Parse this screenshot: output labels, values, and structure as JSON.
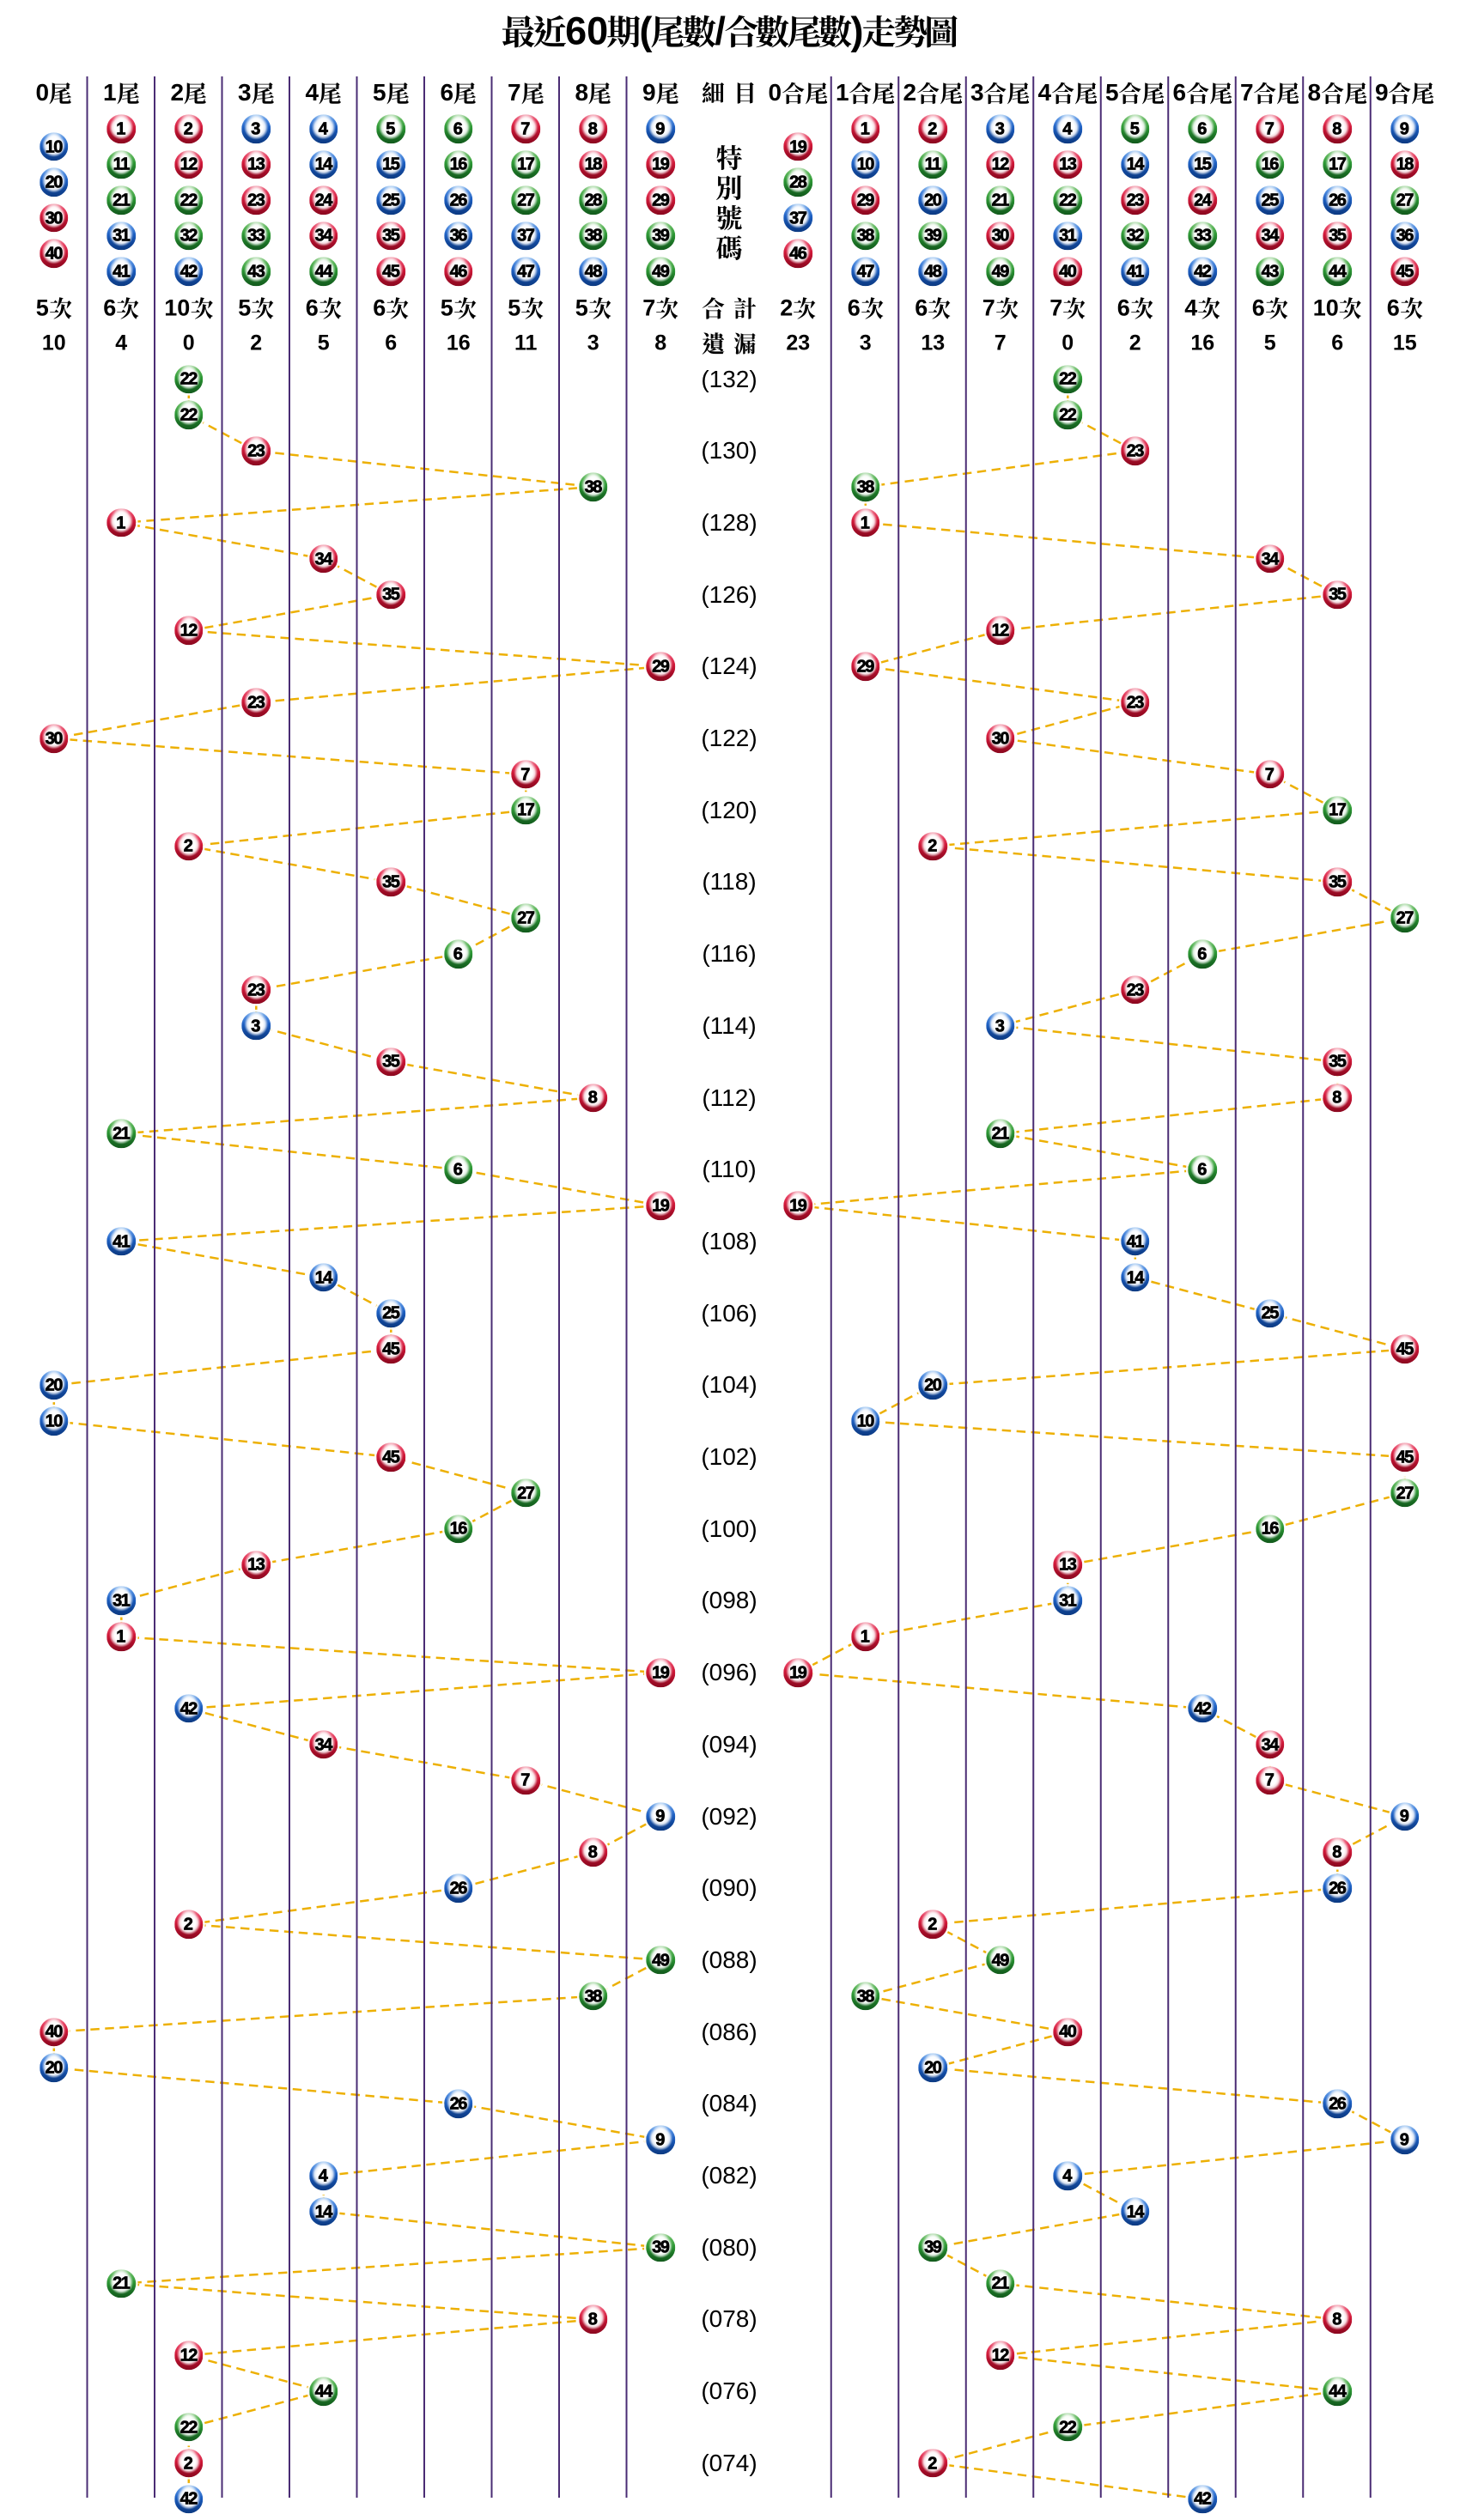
{
  "title": "最近60期(尾數/合數尾數)走勢圖",
  "center": {
    "header": "細目",
    "special_label": "特別號碼",
    "total_label": "合計",
    "miss_label": "遺漏"
  },
  "left_section": {
    "columns": [
      {
        "label": "0尾",
        "balls": [
          10,
          20,
          30,
          40
        ],
        "count": "5次",
        "miss": "10"
      },
      {
        "label": "1尾",
        "balls": [
          1,
          11,
          21,
          31,
          41
        ],
        "count": "6次",
        "miss": "4"
      },
      {
        "label": "2尾",
        "balls": [
          2,
          12,
          22,
          32,
          42
        ],
        "count": "10次",
        "miss": "0"
      },
      {
        "label": "3尾",
        "balls": [
          3,
          13,
          23,
          33,
          43
        ],
        "count": "5次",
        "miss": "2"
      },
      {
        "label": "4尾",
        "balls": [
          4,
          14,
          24,
          34,
          44
        ],
        "count": "6次",
        "miss": "5"
      },
      {
        "label": "5尾",
        "balls": [
          5,
          15,
          25,
          35,
          45
        ],
        "count": "6次",
        "miss": "6"
      },
      {
        "label": "6尾",
        "balls": [
          6,
          16,
          26,
          36,
          46
        ],
        "count": "5次",
        "miss": "16"
      },
      {
        "label": "7尾",
        "balls": [
          7,
          17,
          27,
          37,
          47
        ],
        "count": "5次",
        "miss": "11"
      },
      {
        "label": "8尾",
        "balls": [
          8,
          18,
          28,
          38,
          48
        ],
        "count": "5次",
        "miss": "3"
      },
      {
        "label": "9尾",
        "balls": [
          9,
          19,
          29,
          39,
          49
        ],
        "count": "7次",
        "miss": "8"
      }
    ]
  },
  "right_section": {
    "columns": [
      {
        "label": "0合尾",
        "balls": [
          19,
          28,
          37,
          46
        ],
        "count": "2次",
        "miss": "23"
      },
      {
        "label": "1合尾",
        "balls": [
          1,
          10,
          29,
          38,
          47
        ],
        "count": "6次",
        "miss": "3"
      },
      {
        "label": "2合尾",
        "balls": [
          2,
          11,
          20,
          39,
          48
        ],
        "count": "6次",
        "miss": "13"
      },
      {
        "label": "3合尾",
        "balls": [
          3,
          12,
          21,
          30,
          49
        ],
        "count": "7次",
        "miss": "7"
      },
      {
        "label": "4合尾",
        "balls": [
          4,
          13,
          22,
          31,
          40
        ],
        "count": "7次",
        "miss": "0"
      },
      {
        "label": "5合尾",
        "balls": [
          5,
          14,
          23,
          32,
          41
        ],
        "count": "6次",
        "miss": "2"
      },
      {
        "label": "6合尾",
        "balls": [
          6,
          15,
          24,
          33,
          42
        ],
        "count": "4次",
        "miss": "16"
      },
      {
        "label": "7合尾",
        "balls": [
          7,
          16,
          25,
          34,
          43
        ],
        "count": "6次",
        "miss": "5"
      },
      {
        "label": "8合尾",
        "balls": [
          8,
          17,
          26,
          35,
          44
        ],
        "count": "10次",
        "miss": "6"
      },
      {
        "label": "9合尾",
        "balls": [
          9,
          18,
          27,
          36,
          45
        ],
        "count": "6次",
        "miss": "15"
      }
    ]
  },
  "colors": {
    "ball_red": "#c81432",
    "ball_blue": "#1a5ec8",
    "ball_green": "#2e9b35",
    "grid_line": "#4a2c74",
    "connector": "#edb004",
    "text": "#000000"
  },
  "ball_color_groups": {
    "red": [
      1,
      2,
      7,
      8,
      12,
      13,
      18,
      19,
      23,
      24,
      29,
      30,
      34,
      35,
      40,
      45,
      46
    ],
    "blue": [
      3,
      4,
      9,
      10,
      14,
      15,
      20,
      25,
      26,
      31,
      36,
      37,
      41,
      42,
      47,
      48
    ],
    "green": [
      5,
      6,
      11,
      16,
      17,
      21,
      22,
      27,
      28,
      32,
      33,
      38,
      39,
      43,
      44,
      49
    ]
  },
  "chart_data": {
    "type": "scatter",
    "title": "最近60期(尾數/合數尾數)走勢圖",
    "left_axis_categories": [
      "0尾",
      "1尾",
      "2尾",
      "3尾",
      "4尾",
      "5尾",
      "6尾",
      "7尾",
      "8尾",
      "9尾"
    ],
    "right_axis_categories": [
      "0合尾",
      "1合尾",
      "2合尾",
      "3合尾",
      "4合尾",
      "5合尾",
      "6合尾",
      "7合尾",
      "8合尾",
      "9合尾"
    ],
    "left_counts": [
      "5次",
      "6次",
      "10次",
      "5次",
      "6次",
      "6次",
      "5次",
      "5次",
      "5次",
      "7次"
    ],
    "left_misses": [
      "10",
      "4",
      "0",
      "2",
      "5",
      "6",
      "16",
      "11",
      "3",
      "8"
    ],
    "right_counts": [
      "2次",
      "6次",
      "6次",
      "7次",
      "7次",
      "6次",
      "4次",
      "6次",
      "10次",
      "6次"
    ],
    "right_misses": [
      "23",
      "3",
      "13",
      "7",
      "0",
      "2",
      "16",
      "5",
      "6",
      "15"
    ],
    "period_labels_shown": [
      "(132)",
      "(130)",
      "(128)",
      "(126)",
      "(124)",
      "(122)",
      "(120)",
      "(118)",
      "(116)",
      "(114)",
      "(112)",
      "(110)",
      "(108)",
      "(106)",
      "(104)",
      "(102)",
      "(100)",
      "(098)",
      "(096)",
      "(094)",
      "(092)",
      "(090)",
      "(088)",
      "(086)",
      "(084)",
      "(082)",
      "(080)",
      "(078)",
      "(076)",
      "(074)"
    ],
    "draws": [
      {
        "period_label": "(132)",
        "number": 22,
        "tail": 2,
        "sum_tail": 4
      },
      {
        "period_label": "",
        "number": 22,
        "tail": 2,
        "sum_tail": 4
      },
      {
        "period_label": "(130)",
        "number": 23,
        "tail": 3,
        "sum_tail": 5
      },
      {
        "period_label": "",
        "number": 38,
        "tail": 8,
        "sum_tail": 1
      },
      {
        "period_label": "(128)",
        "number": 1,
        "tail": 1,
        "sum_tail": 1
      },
      {
        "period_label": "",
        "number": 34,
        "tail": 4,
        "sum_tail": 7
      },
      {
        "period_label": "(126)",
        "number": 35,
        "tail": 5,
        "sum_tail": 8
      },
      {
        "period_label": "",
        "number": 12,
        "tail": 2,
        "sum_tail": 3
      },
      {
        "period_label": "(124)",
        "number": 29,
        "tail": 9,
        "sum_tail": 1
      },
      {
        "period_label": "",
        "number": 23,
        "tail": 3,
        "sum_tail": 5
      },
      {
        "period_label": "(122)",
        "number": 30,
        "tail": 0,
        "sum_tail": 3
      },
      {
        "period_label": "",
        "number": 7,
        "tail": 7,
        "sum_tail": 7
      },
      {
        "period_label": "(120)",
        "number": 17,
        "tail": 7,
        "sum_tail": 8
      },
      {
        "period_label": "",
        "number": 2,
        "tail": 2,
        "sum_tail": 2
      },
      {
        "period_label": "(118)",
        "number": 35,
        "tail": 5,
        "sum_tail": 8
      },
      {
        "period_label": "",
        "number": 27,
        "tail": 7,
        "sum_tail": 9
      },
      {
        "period_label": "(116)",
        "number": 6,
        "tail": 6,
        "sum_tail": 6
      },
      {
        "period_label": "",
        "number": 23,
        "tail": 3,
        "sum_tail": 5
      },
      {
        "period_label": "(114)",
        "number": 3,
        "tail": 3,
        "sum_tail": 3
      },
      {
        "period_label": "",
        "number": 35,
        "tail": 5,
        "sum_tail": 8
      },
      {
        "period_label": "(112)",
        "number": 8,
        "tail": 8,
        "sum_tail": 8
      },
      {
        "period_label": "",
        "number": 21,
        "tail": 1,
        "sum_tail": 3
      },
      {
        "period_label": "(110)",
        "number": 6,
        "tail": 6,
        "sum_tail": 6
      },
      {
        "period_label": "",
        "number": 19,
        "tail": 9,
        "sum_tail": 0
      },
      {
        "period_label": "(108)",
        "number": 41,
        "tail": 1,
        "sum_tail": 5
      },
      {
        "period_label": "",
        "number": 14,
        "tail": 4,
        "sum_tail": 5
      },
      {
        "period_label": "(106)",
        "number": 25,
        "tail": 5,
        "sum_tail": 7
      },
      {
        "period_label": "",
        "number": 45,
        "tail": 5,
        "sum_tail": 9
      },
      {
        "period_label": "(104)",
        "number": 20,
        "tail": 0,
        "sum_tail": 2
      },
      {
        "period_label": "",
        "number": 10,
        "tail": 0,
        "sum_tail": 1
      },
      {
        "period_label": "(102)",
        "number": 45,
        "tail": 5,
        "sum_tail": 9
      },
      {
        "period_label": "",
        "number": 27,
        "tail": 7,
        "sum_tail": 9
      },
      {
        "period_label": "(100)",
        "number": 16,
        "tail": 6,
        "sum_tail": 7
      },
      {
        "period_label": "",
        "number": 13,
        "tail": 3,
        "sum_tail": 4
      },
      {
        "period_label": "(098)",
        "number": 31,
        "tail": 1,
        "sum_tail": 4
      },
      {
        "period_label": "",
        "number": 1,
        "tail": 1,
        "sum_tail": 1
      },
      {
        "period_label": "(096)",
        "number": 19,
        "tail": 9,
        "sum_tail": 0
      },
      {
        "period_label": "",
        "number": 42,
        "tail": 2,
        "sum_tail": 6
      },
      {
        "period_label": "(094)",
        "number": 34,
        "tail": 4,
        "sum_tail": 7
      },
      {
        "period_label": "",
        "number": 7,
        "tail": 7,
        "sum_tail": 7
      },
      {
        "period_label": "(092)",
        "number": 9,
        "tail": 9,
        "sum_tail": 9
      },
      {
        "period_label": "",
        "number": 8,
        "tail": 8,
        "sum_tail": 8
      },
      {
        "period_label": "(090)",
        "number": 26,
        "tail": 6,
        "sum_tail": 8
      },
      {
        "period_label": "",
        "number": 2,
        "tail": 2,
        "sum_tail": 2
      },
      {
        "period_label": "(088)",
        "number": 49,
        "tail": 9,
        "sum_tail": 3
      },
      {
        "period_label": "",
        "number": 38,
        "tail": 8,
        "sum_tail": 1
      },
      {
        "period_label": "(086)",
        "number": 40,
        "tail": 0,
        "sum_tail": 4
      },
      {
        "period_label": "",
        "number": 20,
        "tail": 0,
        "sum_tail": 2
      },
      {
        "period_label": "(084)",
        "number": 26,
        "tail": 6,
        "sum_tail": 8
      },
      {
        "period_label": "",
        "number": 9,
        "tail": 9,
        "sum_tail": 9
      },
      {
        "period_label": "(082)",
        "number": 4,
        "tail": 4,
        "sum_tail": 4
      },
      {
        "period_label": "",
        "number": 14,
        "tail": 4,
        "sum_tail": 5
      },
      {
        "period_label": "(080)",
        "number": 39,
        "tail": 9,
        "sum_tail": 2
      },
      {
        "period_label": "",
        "number": 21,
        "tail": 1,
        "sum_tail": 3
      },
      {
        "period_label": "(078)",
        "number": 8,
        "tail": 8,
        "sum_tail": 8
      },
      {
        "period_label": "",
        "number": 12,
        "tail": 2,
        "sum_tail": 3
      },
      {
        "period_label": "(076)",
        "number": 44,
        "tail": 4,
        "sum_tail": 8
      },
      {
        "period_label": "",
        "number": 22,
        "tail": 2,
        "sum_tail": 4
      },
      {
        "period_label": "(074)",
        "number": 2,
        "tail": 2,
        "sum_tail": 2
      },
      {
        "period_label": "",
        "number": 42,
        "tail": 2,
        "sum_tail": 6
      }
    ]
  }
}
